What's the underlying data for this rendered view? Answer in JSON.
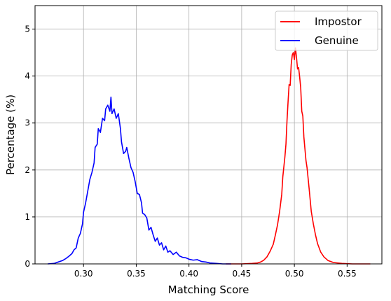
{
  "chart_data": {
    "type": "line",
    "xlabel": "Matching Score",
    "ylabel": "Percentage (%)",
    "xlim": [
      0.254,
      0.583
    ],
    "ylim": [
      0,
      5.5
    ],
    "x_ticks": [
      "0.30",
      "0.35",
      "0.40",
      "0.45",
      "0.50",
      "0.55"
    ],
    "y_ticks": [
      "0",
      "1",
      "2",
      "3",
      "4",
      "5"
    ],
    "grid": true,
    "legend_position": "top-right",
    "series": [
      {
        "name": "Impostor",
        "color": "#ff0000",
        "points": [
          [
            0.435,
            0.0
          ],
          [
            0.45,
            0.0
          ],
          [
            0.46,
            0.01
          ],
          [
            0.465,
            0.02
          ],
          [
            0.468,
            0.04
          ],
          [
            0.471,
            0.08
          ],
          [
            0.474,
            0.15
          ],
          [
            0.477,
            0.27
          ],
          [
            0.48,
            0.42
          ],
          [
            0.482,
            0.62
          ],
          [
            0.484,
            0.83
          ],
          [
            0.486,
            1.12
          ],
          [
            0.488,
            1.48
          ],
          [
            0.489,
            1.85
          ],
          [
            0.491,
            2.28
          ],
          [
            0.492,
            2.55
          ],
          [
            0.493,
            3.05
          ],
          [
            0.494,
            3.45
          ],
          [
            0.495,
            3.82
          ],
          [
            0.496,
            3.8
          ],
          [
            0.497,
            4.25
          ],
          [
            0.498,
            4.45
          ],
          [
            0.499,
            4.5
          ],
          [
            0.5,
            4.35
          ],
          [
            0.501,
            4.6
          ],
          [
            0.502,
            4.4
          ],
          [
            0.503,
            4.15
          ],
          [
            0.504,
            4.18
          ],
          [
            0.505,
            3.98
          ],
          [
            0.506,
            3.75
          ],
          [
            0.507,
            3.25
          ],
          [
            0.508,
            3.15
          ],
          [
            0.509,
            2.7
          ],
          [
            0.511,
            2.2
          ],
          [
            0.512,
            2.05
          ],
          [
            0.514,
            1.6
          ],
          [
            0.516,
            1.12
          ],
          [
            0.518,
            0.85
          ],
          [
            0.52,
            0.62
          ],
          [
            0.522,
            0.43
          ],
          [
            0.525,
            0.25
          ],
          [
            0.528,
            0.15
          ],
          [
            0.532,
            0.07
          ],
          [
            0.537,
            0.03
          ],
          [
            0.545,
            0.01
          ],
          [
            0.555,
            0.0
          ],
          [
            0.572,
            0.0
          ]
        ]
      },
      {
        "name": "Genuine",
        "color": "#0000ff",
        "points": [
          [
            0.266,
            0.0
          ],
          [
            0.272,
            0.01
          ],
          [
            0.276,
            0.04
          ],
          [
            0.28,
            0.07
          ],
          [
            0.283,
            0.11
          ],
          [
            0.286,
            0.16
          ],
          [
            0.289,
            0.22
          ],
          [
            0.291,
            0.3
          ],
          [
            0.293,
            0.34
          ],
          [
            0.295,
            0.55
          ],
          [
            0.297,
            0.65
          ],
          [
            0.299,
            0.85
          ],
          [
            0.3,
            1.1
          ],
          [
            0.302,
            1.3
          ],
          [
            0.304,
            1.55
          ],
          [
            0.306,
            1.8
          ],
          [
            0.308,
            1.95
          ],
          [
            0.31,
            2.15
          ],
          [
            0.311,
            2.48
          ],
          [
            0.313,
            2.55
          ],
          [
            0.314,
            2.88
          ],
          [
            0.316,
            2.8
          ],
          [
            0.318,
            3.1
          ],
          [
            0.32,
            3.05
          ],
          [
            0.321,
            3.3
          ],
          [
            0.323,
            3.38
          ],
          [
            0.325,
            3.25
          ],
          [
            0.326,
            3.55
          ],
          [
            0.327,
            3.2
          ],
          [
            0.329,
            3.3
          ],
          [
            0.331,
            3.1
          ],
          [
            0.333,
            3.2
          ],
          [
            0.335,
            2.88
          ],
          [
            0.336,
            2.6
          ],
          [
            0.338,
            2.35
          ],
          [
            0.34,
            2.4
          ],
          [
            0.341,
            2.48
          ],
          [
            0.343,
            2.25
          ],
          [
            0.345,
            2.05
          ],
          [
            0.347,
            1.95
          ],
          [
            0.349,
            1.75
          ],
          [
            0.351,
            1.5
          ],
          [
            0.353,
            1.48
          ],
          [
            0.355,
            1.3
          ],
          [
            0.356,
            1.08
          ],
          [
            0.358,
            1.05
          ],
          [
            0.36,
            0.98
          ],
          [
            0.362,
            0.72
          ],
          [
            0.364,
            0.78
          ],
          [
            0.366,
            0.62
          ],
          [
            0.368,
            0.48
          ],
          [
            0.37,
            0.55
          ],
          [
            0.372,
            0.4
          ],
          [
            0.374,
            0.45
          ],
          [
            0.376,
            0.3
          ],
          [
            0.378,
            0.38
          ],
          [
            0.38,
            0.25
          ],
          [
            0.382,
            0.28
          ],
          [
            0.385,
            0.2
          ],
          [
            0.388,
            0.25
          ],
          [
            0.391,
            0.17
          ],
          [
            0.394,
            0.14
          ],
          [
            0.397,
            0.13
          ],
          [
            0.4,
            0.1
          ],
          [
            0.404,
            0.08
          ],
          [
            0.408,
            0.09
          ],
          [
            0.412,
            0.05
          ],
          [
            0.416,
            0.04
          ],
          [
            0.42,
            0.02
          ],
          [
            0.426,
            0.01
          ],
          [
            0.432,
            0.0
          ],
          [
            0.44,
            0.0
          ]
        ]
      }
    ]
  }
}
